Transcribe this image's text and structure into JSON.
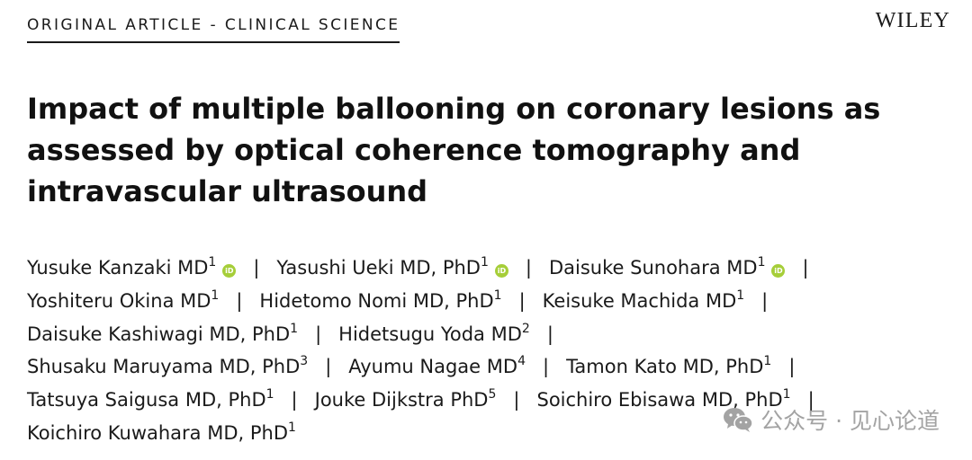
{
  "header": {
    "section_label": "ORIGINAL ARTICLE - CLINICAL SCIENCE",
    "publisher": "WILEY"
  },
  "article": {
    "title": "Impact of multiple ballooning on coronary lesions as assessed by optical coherence tomography and intravascular ultrasound"
  },
  "authors": [
    {
      "name": "Yusuke Kanzaki MD",
      "affiliation": "1",
      "orcid": true
    },
    {
      "name": "Yasushi Ueki MD, PhD",
      "affiliation": "1",
      "orcid": true
    },
    {
      "name": "Daisuke Sunohara MD",
      "affiliation": "1",
      "orcid": true
    },
    {
      "name": "Yoshiteru Okina MD",
      "affiliation": "1",
      "orcid": false
    },
    {
      "name": "Hidetomo Nomi MD, PhD",
      "affiliation": "1",
      "orcid": false
    },
    {
      "name": "Keisuke Machida MD",
      "affiliation": "1",
      "orcid": false
    },
    {
      "name": "Daisuke Kashiwagi MD, PhD",
      "affiliation": "1",
      "orcid": false
    },
    {
      "name": "Hidetsugu Yoda MD",
      "affiliation": "2",
      "orcid": false
    },
    {
      "name": "Shusaku Maruyama MD, PhD",
      "affiliation": "3",
      "orcid": false
    },
    {
      "name": "Ayumu Nagae MD",
      "affiliation": "4",
      "orcid": false
    },
    {
      "name": "Tamon Kato MD, PhD",
      "affiliation": "1",
      "orcid": false
    },
    {
      "name": "Tatsuya Saigusa MD, PhD",
      "affiliation": "1",
      "orcid": false
    },
    {
      "name": "Jouke Dijkstra PhD",
      "affiliation": "5",
      "orcid": false
    },
    {
      "name": "Soichiro Ebisawa MD, PhD",
      "affiliation": "1",
      "orcid": false
    },
    {
      "name": "Koichiro Kuwahara MD, PhD",
      "affiliation": "1",
      "orcid": false
    }
  ],
  "separator": "|",
  "orcid_icon_text": "iD",
  "watermark": {
    "text": "公众号 · 见心论道",
    "icon": "wechat-icon"
  },
  "colors": {
    "orcid": "#a6ce39",
    "text": "#111111",
    "watermark": "#9a9a9a"
  }
}
